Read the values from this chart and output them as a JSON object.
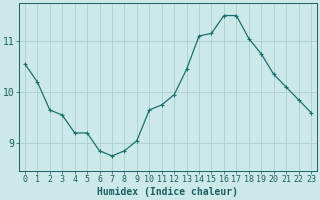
{
  "x": [
    0,
    1,
    2,
    3,
    4,
    5,
    6,
    7,
    8,
    9,
    10,
    11,
    12,
    13,
    14,
    15,
    16,
    17,
    18,
    19,
    20,
    21,
    22,
    23
  ],
  "y": [
    10.55,
    10.2,
    9.65,
    9.55,
    9.2,
    9.2,
    8.85,
    8.75,
    8.85,
    9.05,
    9.65,
    9.75,
    9.95,
    10.45,
    11.1,
    11.15,
    11.5,
    11.5,
    11.05,
    10.75,
    10.35,
    10.1,
    9.85,
    9.6
  ],
  "line_color": "#1a7070",
  "marker": "+",
  "marker_size": 3,
  "marker_lw": 0.8,
  "line_width": 0.9,
  "bg_color": "#cce8e8",
  "grid_color": "#aad0d0",
  "xlabel": "Humidex (Indice chaleur)",
  "yticks": [
    9,
    10,
    11
  ],
  "xlim": [
    -0.5,
    23.5
  ],
  "ylim": [
    8.45,
    11.75
  ],
  "tick_color": "#1a6060",
  "axis_color": "#1a6060",
  "label_fontsize": 7,
  "tick_fontsize": 6
}
